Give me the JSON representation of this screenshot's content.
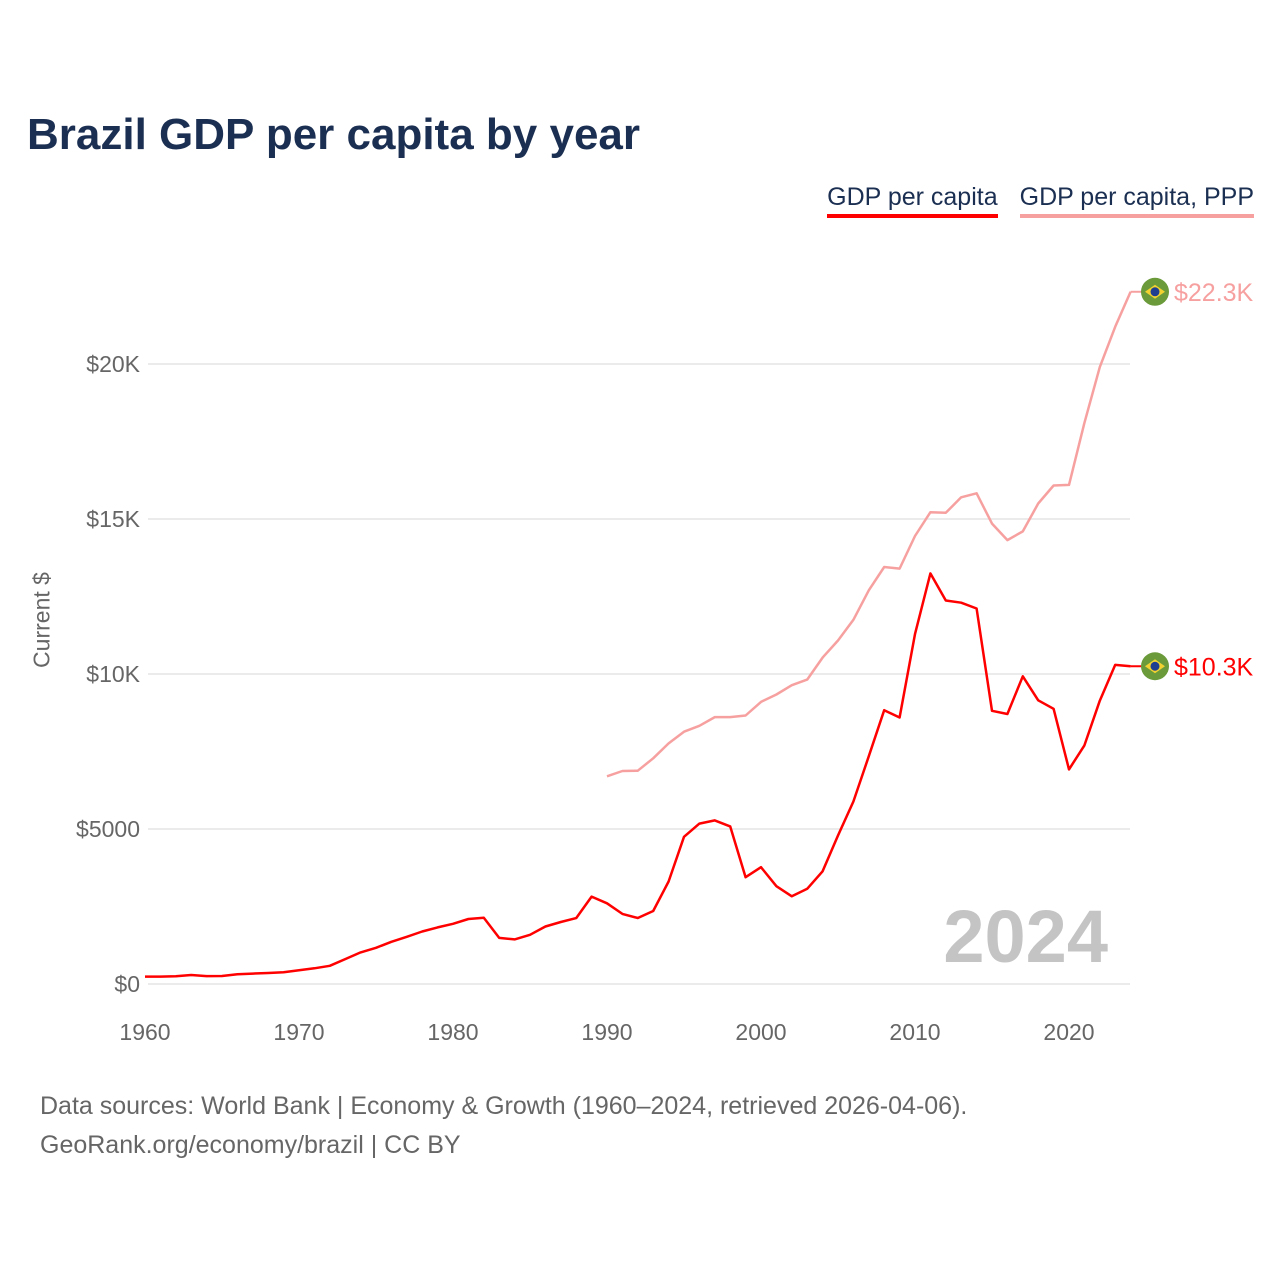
{
  "title": "Brazil GDP per capita by year",
  "legend": [
    "GDP per capita",
    "GDP per capita, PPP"
  ],
  "source_line1": "Data sources: World Bank | Economy & Growth (1960–2024, retrieved 2026-04-06).",
  "source_line2": "GeoRank.org/economy/brazil | CC BY",
  "colors": {
    "gdp": "#ff0000",
    "ppp": "#f7a0a0",
    "title": "#1b2f52"
  },
  "chart_data": {
    "type": "line",
    "title": "Brazil GDP per capita by year",
    "xlabel": "",
    "ylabel": "Current $",
    "xlim": [
      1960,
      2024
    ],
    "ylim": [
      0,
      22330
    ],
    "x_ticks": [
      1960,
      1970,
      1980,
      1990,
      2000,
      2010,
      2020
    ],
    "x_tick_labels": [
      "1960",
      "1970",
      "1980",
      "1990",
      "2000",
      "2010",
      "2020"
    ],
    "y_ticks": [
      0,
      5000,
      10000,
      15000,
      20000
    ],
    "y_tick_labels": [
      "$0",
      "$5000",
      "$10K",
      "$15K",
      "$20K"
    ],
    "grid": true,
    "legend_position": "top-right",
    "watermark_year": "2024",
    "series": [
      {
        "name": "GDP per capita",
        "end_label": "$10.3K",
        "x_start": 1960,
        "values": [
          239,
          240,
          248,
          291,
          256,
          257,
          314,
          336,
          356,
          380,
          445,
          505,
          587,
          804,
          1018,
          1167,
          1361,
          1523,
          1694,
          1826,
          1942,
          2097,
          2136,
          1486,
          1440,
          1587,
          1855,
          2001,
          2125,
          2820,
          2603,
          2261,
          2128,
          2355,
          3307,
          4748,
          5173,
          5278,
          5084,
          3446,
          3767,
          3156,
          2830,
          3070,
          3637,
          4790,
          5886,
          7348,
          8831,
          8598,
          11286,
          13245,
          12370,
          12300,
          12113,
          8814,
          8710,
          9925,
          9151,
          8876,
          6923,
          7697,
          9140,
          10295,
          10250
        ]
      },
      {
        "name": "GDP per capita, PPP",
        "end_label": "$22.3K",
        "x_start": 1990,
        "values": [
          6700,
          6870,
          6880,
          7280,
          7760,
          8140,
          8330,
          8610,
          8610,
          8660,
          9100,
          9340,
          9640,
          9820,
          10530,
          11080,
          11750,
          12700,
          13450,
          13400,
          14450,
          15220,
          15200,
          15700,
          15830,
          14850,
          14320,
          14600,
          15500,
          16080,
          16100,
          18100,
          19900,
          21200,
          22330
        ]
      }
    ]
  }
}
